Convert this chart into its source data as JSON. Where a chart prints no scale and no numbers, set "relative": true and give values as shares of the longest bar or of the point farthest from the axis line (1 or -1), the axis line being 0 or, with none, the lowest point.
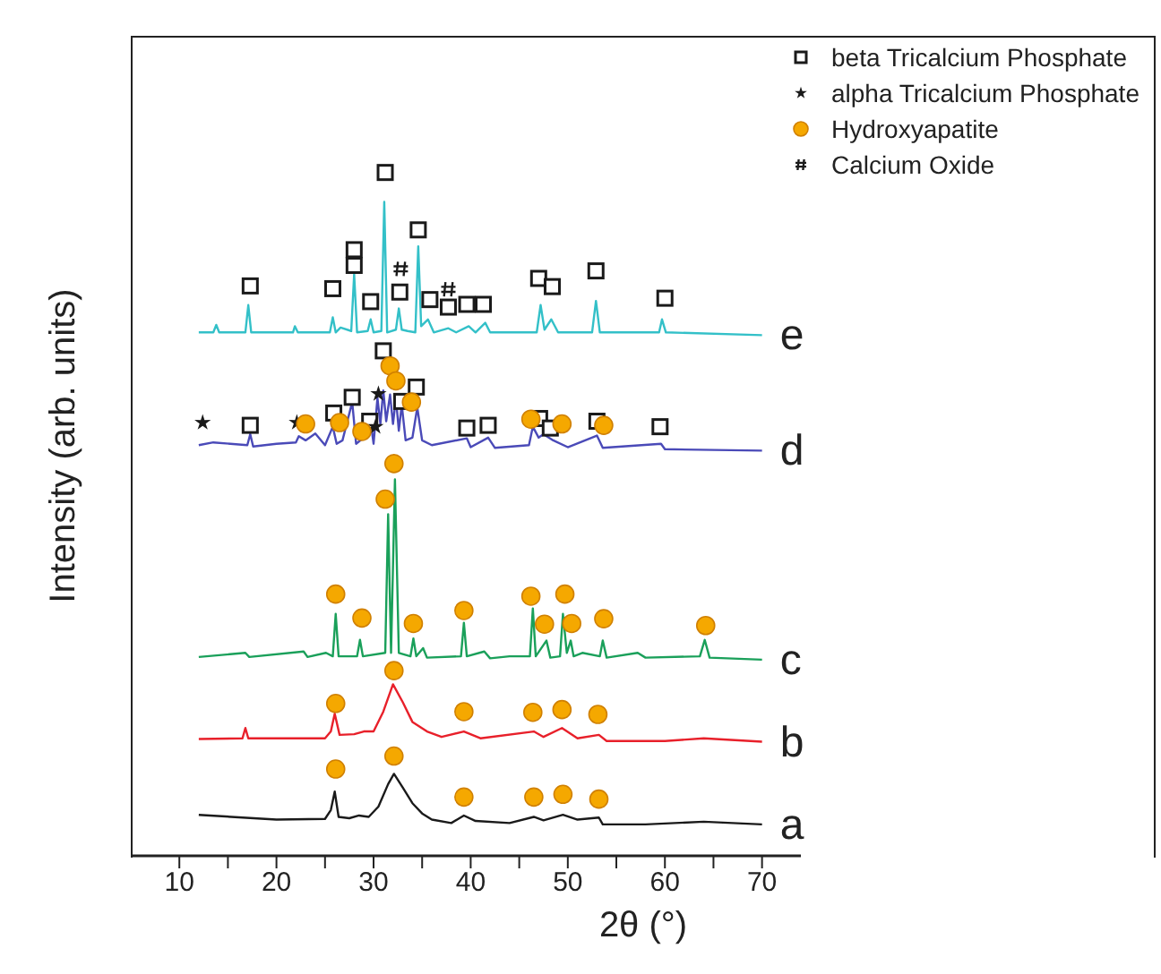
{
  "chart_data": {
    "type": "line",
    "relative": true,
    "xlabel": "2θ (°)",
    "ylabel": "Intensity (arb. units)",
    "xlim": [
      5,
      74
    ],
    "xticks": [
      10,
      {
        "value": 15,
        "label": null
      },
      20,
      {
        "value": 25,
        "label": null
      },
      30,
      {
        "value": 35,
        "label": null
      },
      40,
      {
        "value": 45,
        "label": null
      },
      50,
      {
        "value": 55,
        "label": null
      },
      60,
      {
        "value": 65,
        "label": null
      },
      70
    ],
    "legend": "top right",
    "line_style": "solid",
    "series": [
      {
        "name": "a",
        "color": "#1a1a1a",
        "x": [
          12,
          20,
          25,
          25.6,
          26,
          26.4,
          27.5,
          28.5,
          29.5,
          30.5,
          31.5,
          32.1,
          33,
          34,
          35,
          36,
          38,
          39.3,
          40.5,
          44,
          46.5,
          47.5,
          49.5,
          51,
          53.2,
          53.6,
          58,
          64,
          70
        ],
        "values": [
          0.06,
          0.053,
          0.054,
          0.067,
          0.094,
          0.057,
          0.055,
          0.059,
          0.057,
          0.072,
          0.105,
          0.12,
          0.1,
          0.077,
          0.062,
          0.053,
          0.048,
          0.059,
          0.051,
          0.048,
          0.057,
          0.052,
          0.06,
          0.053,
          0.056,
          0.046,
          0.046,
          0.05,
          0.046
        ]
      },
      {
        "name": "b",
        "color": "#e8202a",
        "x": [
          12,
          16.5,
          16.8,
          17.1,
          25,
          25.6,
          26,
          26.5,
          28,
          29,
          30,
          31,
          32,
          33,
          34,
          35.5,
          37,
          39.3,
          41,
          46.5,
          47.5,
          49.4,
          51,
          53.2,
          54,
          60,
          64,
          70
        ],
        "values": [
          0.171,
          0.172,
          0.187,
          0.172,
          0.172,
          0.182,
          0.208,
          0.177,
          0.178,
          0.182,
          0.182,
          0.211,
          0.251,
          0.225,
          0.196,
          0.182,
          0.174,
          0.182,
          0.172,
          0.182,
          0.174,
          0.187,
          0.172,
          0.177,
          0.168,
          0.168,
          0.172,
          0.167
        ]
      },
      {
        "name": "c",
        "color": "#1aa05a",
        "x": [
          12,
          16.8,
          17.2,
          22.8,
          23.2,
          25.1,
          25.8,
          26.1,
          26.4,
          28.3,
          28.6,
          28.9,
          31.2,
          31.5,
          31.8,
          32.2,
          32.6,
          33.8,
          34.1,
          34.4,
          35.1,
          35.5,
          39,
          39.3,
          39.6,
          41.4,
          42,
          44,
          46.1,
          46.4,
          46.7,
          47.8,
          48.2,
          49.2,
          49.5,
          49.9,
          50.3,
          50.6,
          51.5,
          53.3,
          53.6,
          54,
          57.2,
          58,
          63.6,
          64.1,
          64.6,
          70
        ],
        "values": [
          0.291,
          0.297,
          0.291,
          0.299,
          0.291,
          0.297,
          0.292,
          0.354,
          0.292,
          0.292,
          0.316,
          0.292,
          0.297,
          0.5,
          0.297,
          0.551,
          0.297,
          0.292,
          0.318,
          0.292,
          0.304,
          0.29,
          0.292,
          0.341,
          0.292,
          0.299,
          0.289,
          0.292,
          0.292,
          0.362,
          0.292,
          0.315,
          0.29,
          0.292,
          0.354,
          0.297,
          0.315,
          0.292,
          0.297,
          0.292,
          0.315,
          0.29,
          0.297,
          0.29,
          0.292,
          0.316,
          0.29,
          0.287
        ]
      },
      {
        "name": "d",
        "color": "#4a4ab8",
        "x": [
          12,
          13.5,
          17,
          17.3,
          17.6,
          20,
          22,
          22.3,
          23,
          24,
          25,
          25.8,
          26.2,
          26.8,
          27.8,
          28.2,
          29,
          29.6,
          30,
          30.4,
          30.7,
          31,
          31.3,
          31.7,
          32,
          32.3,
          32.6,
          32.9,
          33.3,
          34,
          34.5,
          35,
          36,
          39.6,
          40,
          41.8,
          42.5,
          46,
          46.4,
          47,
          47.5,
          48.5,
          50,
          53,
          53.6,
          59.6,
          60,
          70
        ],
        "values": [
          0.601,
          0.605,
          0.601,
          0.617,
          0.599,
          0.603,
          0.605,
          0.614,
          0.608,
          0.618,
          0.601,
          0.628,
          0.603,
          0.608,
          0.664,
          0.603,
          0.612,
          0.645,
          0.603,
          0.67,
          0.632,
          0.681,
          0.636,
          0.675,
          0.632,
          0.67,
          0.622,
          0.66,
          0.608,
          0.612,
          0.656,
          0.608,
          0.601,
          0.611,
          0.598,
          0.612,
          0.597,
          0.601,
          0.628,
          0.612,
          0.617,
          0.608,
          0.598,
          0.615,
          0.597,
          0.603,
          0.595,
          0.593
        ]
      },
      {
        "name": "e",
        "color": "#33c0c8",
        "x": [
          12,
          13.5,
          13.8,
          14.1,
          16.8,
          17.1,
          17.4,
          21.7,
          21.9,
          22.2,
          25.5,
          25.8,
          26.1,
          26.6,
          27.7,
          28,
          28.3,
          29.4,
          29.7,
          30,
          30.8,
          31.1,
          31.4,
          32.3,
          32.6,
          32.9,
          33.5,
          34.3,
          34.6,
          34.9,
          35.6,
          36.2,
          37.7,
          38.5,
          39.8,
          40.5,
          41.5,
          42,
          46.8,
          47.2,
          47.6,
          48.3,
          49,
          52.5,
          52.9,
          53.3,
          59.4,
          59.7,
          60.1,
          70
        ],
        "values": [
          0.766,
          0.766,
          0.777,
          0.766,
          0.766,
          0.806,
          0.766,
          0.766,
          0.775,
          0.766,
          0.766,
          0.788,
          0.766,
          0.773,
          0.768,
          0.851,
          0.766,
          0.768,
          0.785,
          0.766,
          0.768,
          0.957,
          0.766,
          0.77,
          0.801,
          0.77,
          0.768,
          0.766,
          0.892,
          0.775,
          0.785,
          0.766,
          0.772,
          0.766,
          0.775,
          0.766,
          0.78,
          0.766,
          0.766,
          0.806,
          0.77,
          0.785,
          0.766,
          0.766,
          0.812,
          0.766,
          0.766,
          0.785,
          0.766,
          0.762
        ]
      },
      {
        "name": "beta Tricalcium Phosphate",
        "type": "scatter",
        "marker": "square",
        "color": "#1a1a1a",
        "x": [
          17.3,
          25.8,
          28,
          28,
          29.7,
          31.2,
          32.7,
          34.6,
          35.8,
          37.7,
          39.6,
          41.3,
          47,
          48.4,
          52.9,
          60,
          17.3,
          25.9,
          27.8,
          29.6,
          31,
          32.9,
          34.4,
          39.6,
          41.8,
          47.1,
          48.2,
          53,
          59.5
        ],
        "values": [
          0.834,
          0.83,
          0.887,
          0.864,
          0.811,
          1,
          0.825,
          0.916,
          0.814,
          0.803,
          0.807,
          0.807,
          0.845,
          0.833,
          0.856,
          0.816,
          0.63,
          0.648,
          0.671,
          0.636,
          0.739,
          0.665,
          0.686,
          0.626,
          0.63,
          0.64,
          0.626,
          0.636,
          0.628
        ]
      },
      {
        "name": "alpha Tricalcium Phosphate",
        "type": "scatter",
        "marker": "star",
        "color": "#1a1a1a",
        "x": [
          12.4,
          22.1,
          30.5,
          30.2
        ],
        "values": [
          0.634,
          0.634,
          0.676,
          0.628
        ]
      },
      {
        "name": "Hydroxyapatite",
        "type": "scatter",
        "marker": "circle",
        "color": "#f5a800",
        "x": [
          23,
          26.5,
          28.8,
          31.7,
          32.3,
          33.9,
          46.2,
          49.4,
          53.7,
          26.1,
          28.8,
          31.2,
          32.1,
          34.1,
          39.3,
          46.2,
          47.6,
          49.7,
          50.4,
          53.7,
          64.2,
          26.1,
          32.1,
          39.3,
          46.4,
          49.4,
          53.1,
          26.1,
          32.1,
          39.3,
          46.5,
          49.5,
          53.2
        ],
        "values": [
          0.632,
          0.634,
          0.621,
          0.717,
          0.695,
          0.664,
          0.639,
          0.632,
          0.63,
          0.383,
          0.348,
          0.522,
          0.574,
          0.34,
          0.359,
          0.38,
          0.339,
          0.383,
          0.34,
          0.347,
          0.337,
          0.223,
          0.271,
          0.211,
          0.21,
          0.214,
          0.207,
          0.127,
          0.146,
          0.086,
          0.086,
          0.09,
          0.083
        ]
      },
      {
        "name": "Calcium Oxide",
        "type": "scatter",
        "marker": "cross",
        "color": "#1a1a1a",
        "x": [
          32.8,
          37.7
        ],
        "values": [
          0.859,
          0.829
        ]
      }
    ]
  }
}
